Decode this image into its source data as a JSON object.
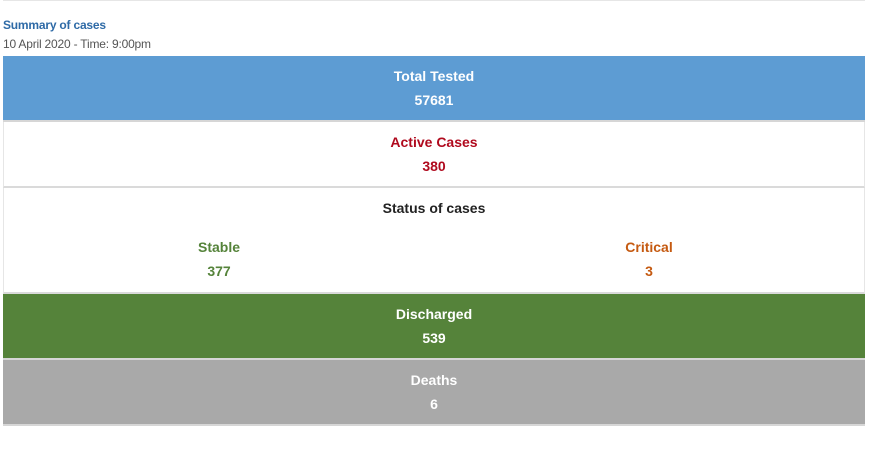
{
  "header": {
    "title": "Summary of cases",
    "datetime": "10 April 2020 - Time: 9:00pm"
  },
  "total_tested": {
    "label": "Total Tested",
    "value": "57681"
  },
  "active_cases": {
    "label": "Active Cases",
    "value": "380"
  },
  "status": {
    "title": "Status of cases",
    "stable": {
      "label": "Stable",
      "value": "377"
    },
    "critical": {
      "label": "Critical",
      "value": "3"
    }
  },
  "discharged": {
    "label": "Discharged",
    "value": "539"
  },
  "deaths": {
    "label": "Deaths",
    "value": "6"
  },
  "colors": {
    "title_blue": "#2e6aa6",
    "tested_bg": "#5d9cd3",
    "active_red": "#b00a1e",
    "stable_green": "#55833a",
    "critical_orange": "#c55a11",
    "discharged_bg": "#55833a",
    "deaths_bg": "#a9a9a9"
  }
}
